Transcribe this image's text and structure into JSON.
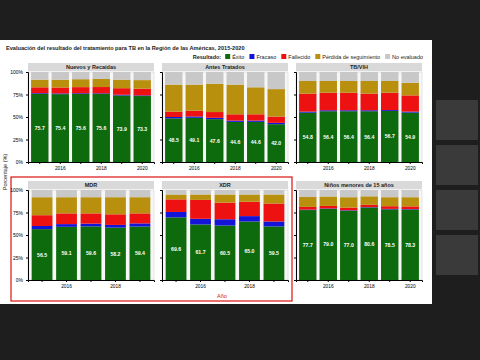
{
  "title": "Evaluación del resultado del tratamiento para TB en la Región de las Américas, 2015-2020",
  "legend_title": "Resultado:",
  "series": [
    {
      "name": "Éxito",
      "color": "#0d6b0d"
    },
    {
      "name": "Fracaso",
      "color": "#1414d8"
    },
    {
      "name": "Fallecido",
      "color": "#ee1111"
    },
    {
      "name": "Pérdida de seguimiento",
      "color": "#b8900e"
    },
    {
      "name": "No evaluado",
      "color": "#c8c8c8"
    }
  ],
  "ylabel": "Porcentaje (%)",
  "xlabel": "Año",
  "chart_data": [
    {
      "type": "bar",
      "stacked": true,
      "title": "Nuevos y Recaídas",
      "categories": [
        null,
        "2016",
        null,
        "2018",
        null,
        "2020"
      ],
      "ylim": [
        0,
        100
      ],
      "yticks": [
        {
          "value": 0,
          "label": "0%"
        },
        {
          "value": 25,
          "label": "25%"
        },
        {
          "value": 50,
          "label": "50%"
        },
        {
          "value": 75,
          "label": "75%"
        },
        {
          "value": 100,
          "label": "100%"
        }
      ],
      "series": [
        {
          "values": [
            75.7,
            75.4,
            75.6,
            75.6,
            73.9,
            73.3
          ],
          "value_labels": [
            "75.7",
            "75.4",
            "75.6",
            "75.6",
            "73.9",
            "73.3"
          ],
          "data_labels": true
        },
        {
          "values": [
            0.8,
            0.8,
            0.8,
            0.7,
            0.8,
            0.7
          ]
        },
        {
          "values": [
            6.5,
            6.6,
            6.8,
            7.0,
            7.3,
            7.5
          ]
        },
        {
          "values": [
            8.5,
            8.7,
            8.8,
            9.0,
            9.5,
            9.5
          ]
        },
        {
          "values": [
            8.5,
            8.5,
            8.0,
            7.7,
            8.5,
            9.0
          ]
        }
      ]
    },
    {
      "type": "bar",
      "stacked": true,
      "title": "Antes Tratados",
      "tick_labels": "x",
      "categories": [
        null,
        "2016",
        null,
        "2018",
        null,
        "2020"
      ],
      "ylim": [
        0,
        100
      ],
      "yticks": [
        0,
        25,
        50,
        75,
        100
      ],
      "series": [
        {
          "values": [
            48.5,
            49.1,
            47.6,
            44.6,
            44.6,
            42.0
          ],
          "value_labels": [
            "48.5",
            "49.1",
            "47.6",
            "44.6",
            "44.6",
            "42.0"
          ],
          "data_labels": true
        },
        {
          "values": [
            1.5,
            1.5,
            1.5,
            1.4,
            1.4,
            1.5
          ]
        },
        {
          "values": [
            6.0,
            6.4,
            6.4,
            7.0,
            7.0,
            7.0
          ]
        },
        {
          "values": [
            30.0,
            29.0,
            31.5,
            33.0,
            30.0,
            30.5
          ]
        },
        {
          "values": [
            14.0,
            14.0,
            13.0,
            14.0,
            17.0,
            19.0
          ]
        }
      ]
    },
    {
      "type": "bar",
      "stacked": true,
      "title": "TB/VIH",
      "tick_labels": "x",
      "categories": [
        null,
        "2016",
        null,
        "2018",
        null,
        "2020"
      ],
      "ylim": [
        0,
        100
      ],
      "yticks": [
        0,
        25,
        50,
        75,
        100
      ],
      "series": [
        {
          "values": [
            54.8,
            56.4,
            56.4,
            56.4,
            56.7,
            54.9
          ],
          "value_labels": [
            "54.8",
            "56.4",
            "56.4",
            "56.4",
            "56.7",
            "54.9"
          ],
          "data_labels": true
        },
        {
          "values": [
            1.2,
            1.1,
            1.1,
            1.1,
            1.0,
            1.1
          ]
        },
        {
          "values": [
            20.0,
            19.5,
            19.5,
            18.5,
            19.3,
            18.0
          ]
        },
        {
          "values": [
            14.0,
            13.0,
            13.0,
            14.0,
            13.0,
            14.0
          ]
        },
        {
          "values": [
            10.0,
            10.0,
            10.0,
            10.0,
            10.0,
            12.0
          ]
        }
      ]
    },
    {
      "type": "bar",
      "stacked": true,
      "title": "MDR",
      "categories": [
        null,
        "2016",
        null,
        "2018",
        null
      ],
      "ylim": [
        0,
        100
      ],
      "yticks": [
        {
          "value": 0,
          "label": "0%"
        },
        {
          "value": 25,
          "label": "25%"
        },
        {
          "value": 50,
          "label": "50%"
        },
        {
          "value": 75,
          "label": "75%"
        },
        {
          "value": 100,
          "label": "100%"
        }
      ],
      "series": [
        {
          "values": [
            56.5,
            59.1,
            59.6,
            58.2,
            59.4
          ],
          "value_labels": [
            "56.5",
            "59.1",
            "59.6",
            "58.2",
            "59.4"
          ],
          "data_labels": true
        },
        {
          "values": [
            3.5,
            3.0,
            3.0,
            3.0,
            3.5
          ]
        },
        {
          "values": [
            12.0,
            11.9,
            11.4,
            11.8,
            11.1
          ]
        },
        {
          "values": [
            20.0,
            18.0,
            18.0,
            19.0,
            18.0
          ]
        },
        {
          "values": [
            8.0,
            8.0,
            8.0,
            8.0,
            8.0
          ]
        }
      ]
    },
    {
      "type": "bar",
      "stacked": true,
      "title": "XDR",
      "tick_labels": "x",
      "categories": [
        null,
        "2016",
        null,
        "2018",
        null
      ],
      "ylim": [
        0,
        100
      ],
      "yticks": [
        0,
        25,
        50,
        75,
        100
      ],
      "series": [
        {
          "values": [
            69.6,
            61.7,
            60.5,
            65.0,
            59.5
          ],
          "value_labels": [
            "69.6",
            "61.7",
            "60.5",
            "65.0",
            "59.5"
          ],
          "data_labels": true
        },
        {
          "values": [
            6.0,
            6.3,
            7.0,
            6.0,
            5.5
          ]
        },
        {
          "values": [
            14.0,
            21.0,
            18.5,
            16.0,
            20.0
          ]
        },
        {
          "values": [
            5.4,
            6.0,
            9.0,
            8.0,
            10.0
          ]
        },
        {
          "values": [
            5.0,
            5.0,
            5.0,
            5.0,
            5.0
          ]
        }
      ]
    },
    {
      "type": "bar",
      "stacked": true,
      "title": "Niños menores de 15 años",
      "tick_labels": "x",
      "categories": [
        null,
        "2016",
        null,
        "2018",
        null,
        "2020"
      ],
      "ylim": [
        0,
        100
      ],
      "yticks": [
        0,
        25,
        50,
        75,
        100
      ],
      "series": [
        {
          "values": [
            77.7,
            79.0,
            77.0,
            80.6,
            78.5,
            78.3
          ],
          "value_labels": [
            "77.7",
            "79.0",
            "77.0",
            "80.6",
            "78.5",
            "78.3"
          ],
          "data_labels": true
        },
        {
          "values": [
            0.5,
            0.5,
            0.5,
            0.4,
            0.5,
            0.5
          ]
        },
        {
          "values": [
            3.0,
            2.8,
            3.0,
            2.5,
            3.0,
            3.0
          ]
        },
        {
          "values": [
            11.0,
            10.5,
            11.5,
            9.5,
            10.0,
            10.2
          ]
        },
        {
          "values": [
            7.8,
            7.2,
            8.0,
            7.0,
            8.0,
            8.0
          ]
        }
      ]
    }
  ]
}
